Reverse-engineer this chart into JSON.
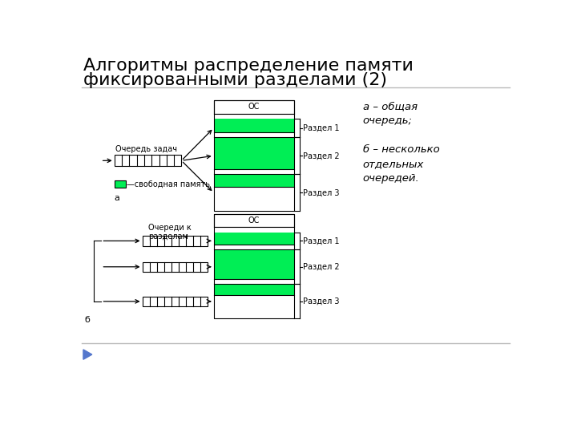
{
  "title_line1": "Алгоритмы распределение памяти",
  "title_line2": "фиксированными разделами (2)",
  "bg_color": "#ffffff",
  "title_color": "#000000",
  "title_fontsize": 16,
  "green_color": "#00ee55",
  "black": "#000000",
  "legend_text": "а – общая\nочередь;\n\nб – несколько\nотдельных\nочередей.",
  "label_os": "ОС",
  "label_razdel1": "Раздел 1",
  "label_razdel2": "Раздел 2",
  "label_razdel3": "Раздел 3",
  "label_ochered": "Очередь задач",
  "label_svobodnaya": "—свободная память",
  "label_a": "а",
  "label_b": "б",
  "label_ocheredi_k": "Очереди к\nразделам"
}
